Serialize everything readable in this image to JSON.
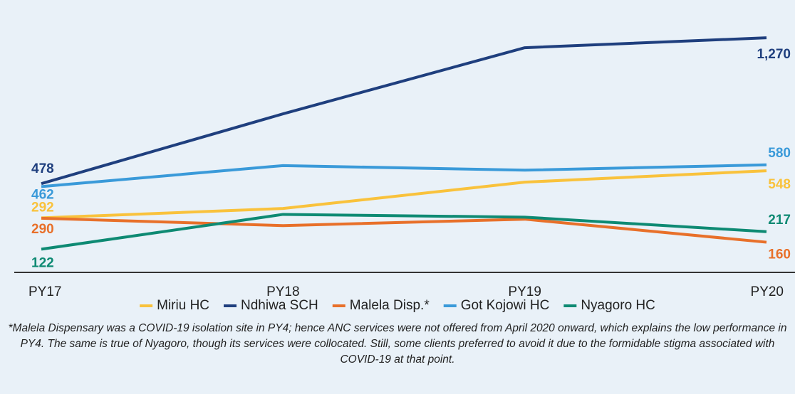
{
  "chart_data": {
    "type": "line",
    "categories": [
      "PY17",
      "PY18",
      "PY19",
      "PY20"
    ],
    "series": [
      {
        "name": "Miriu HC",
        "color": "#f9c23c",
        "values": [
          292,
          343,
          486,
          548
        ],
        "value_labels": [
          "292",
          null,
          null,
          "548"
        ]
      },
      {
        "name": "Ndhiwa SCH",
        "color": "#1f3f7e",
        "values": [
          478,
          857,
          1216,
          1270
        ],
        "value_labels": [
          "478",
          null,
          null,
          "1,270"
        ]
      },
      {
        "name": "Malela Disp.*",
        "color": "#e8702a",
        "values": [
          290,
          250,
          285,
          160
        ],
        "value_labels": [
          "290",
          null,
          null,
          "160"
        ]
      },
      {
        "name": "Got Kojowi HC",
        "color": "#3a9ad9",
        "values": [
          462,
          576,
          551,
          580
        ],
        "value_labels": [
          "462",
          null,
          null,
          "580"
        ]
      },
      {
        "name": "Nyagoro HC",
        "color": "#0e8a73",
        "values": [
          122,
          311,
          296,
          217
        ],
        "value_labels": [
          "122",
          null,
          null,
          "217"
        ]
      }
    ],
    "ylim": [
      0,
      1475
    ],
    "footnote": "*Malela Dispensary was a COVID-19 isolation site in PY4; hence ANC services were not offered from April 2020 onward, which explains the low performance in PY4. The same is true of Nyagoro, though its services were collocated. Still, some clients preferred to avoid it due to the formidable stigma associated with COVID-19 at that point."
  }
}
